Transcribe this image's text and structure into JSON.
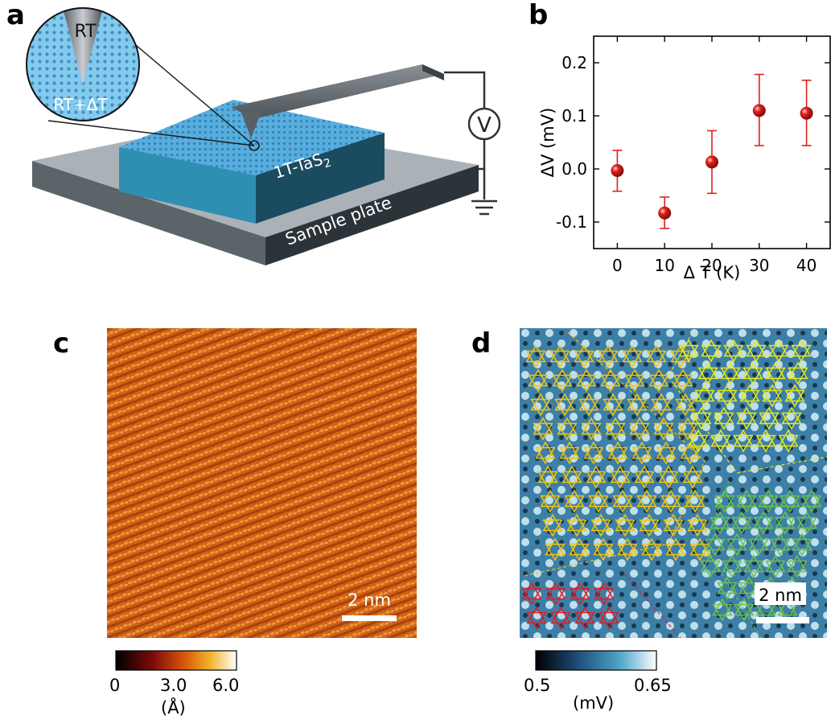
{
  "panels": {
    "a": {
      "label": "a",
      "tip_label": "RT",
      "sample_label": "RT+ΔT",
      "material": "1T-TaS",
      "material_sub": "2",
      "plate": "Sample plate",
      "meter": "V"
    },
    "b": {
      "label": "b",
      "chart_data": {
        "type": "scatter",
        "xlabel": "Δ T (K)",
        "ylabel": "ΔV (mV)",
        "xlim": [
          -5,
          45
        ],
        "ylim": [
          -0.15,
          0.25
        ],
        "xticks": [
          0,
          10,
          20,
          30,
          40
        ],
        "yticks": [
          -0.1,
          0.0,
          0.1,
          0.2
        ],
        "ytick_labels": [
          "-0.1",
          "0.0",
          "0.1",
          "0.2"
        ],
        "series": [
          {
            "x": [
              0,
              10,
              20,
              30,
              40
            ],
            "y": [
              -0.003,
              -0.083,
              0.013,
              0.11,
              0.105
            ],
            "yerr_low": [
              -0.042,
              -0.112,
              -0.046,
              0.044,
              0.044
            ],
            "yerr_high": [
              0.035,
              -0.053,
              0.072,
              0.178,
              0.167
            ]
          }
        ],
        "marker_color": "#e0201c"
      }
    },
    "c": {
      "label": "c",
      "scalebar": "2 nm",
      "colorbar_ticks": [
        "0",
        "3.0",
        "6.0"
      ],
      "colorbar_unit": "(Å)"
    },
    "d": {
      "label": "d",
      "scalebar": "2 nm",
      "colorbar_ticks": [
        "0.5",
        "0.65"
      ],
      "colorbar_unit": "(mV)",
      "domain_colors": [
        "#f2c40f",
        "#e8e81a",
        "#6cc24a",
        "#d8202a"
      ]
    }
  }
}
